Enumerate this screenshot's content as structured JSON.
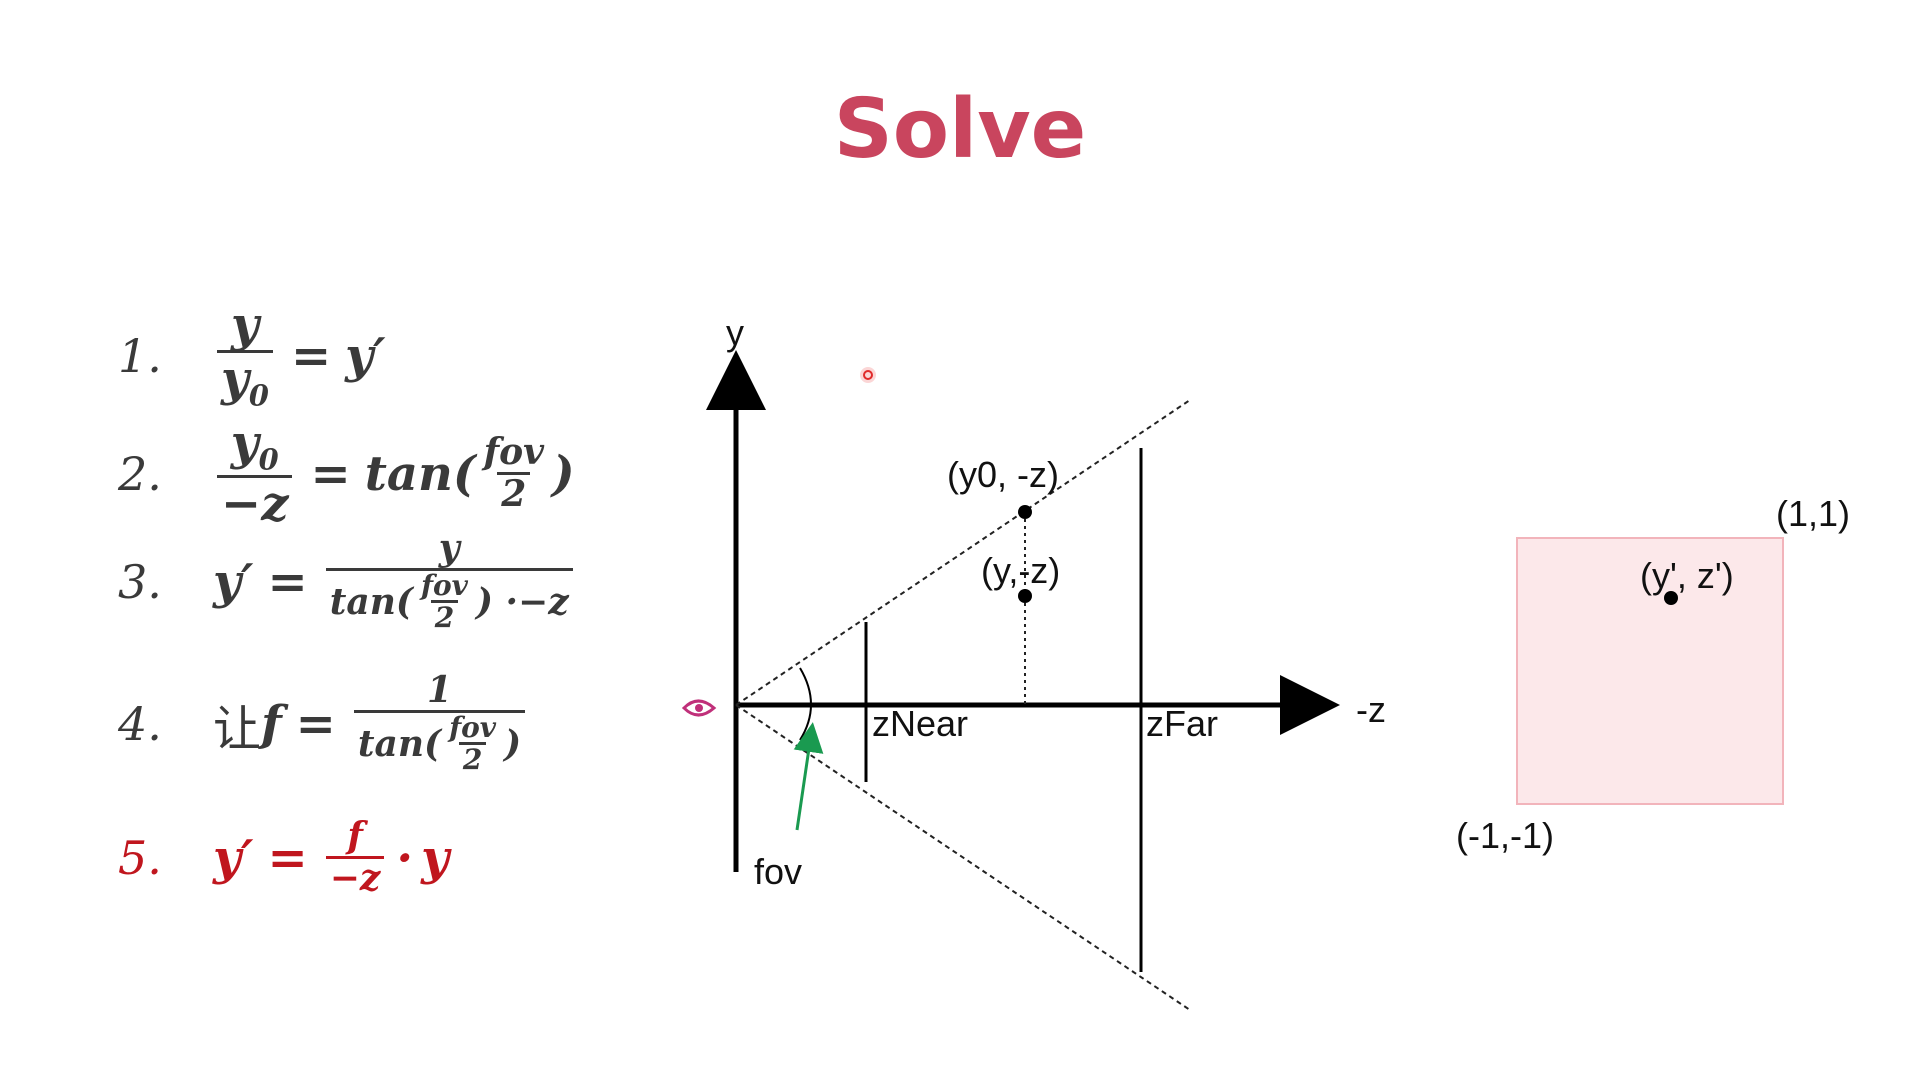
{
  "title": "Solve",
  "equations": [
    {
      "num": "1.",
      "text": "y/y0 = y'"
    },
    {
      "num": "2.",
      "text": "y0/−z = tan(fov/2)"
    },
    {
      "num": "3.",
      "text": "y' = y / (tan(fov/2) · −z)"
    },
    {
      "num": "4.",
      "text": "让 f = 1 / tan(fov/2)"
    },
    {
      "num": "5.",
      "text": "y' = f/−z · y"
    }
  ],
  "eq_colors": {
    "normal": "#3a3a3a",
    "highlight": "#c0161e"
  },
  "diagram": {
    "y_axis_label": "y",
    "z_axis_label": "-z",
    "znear_label": "zNear",
    "zfar_label": "zFar",
    "fov_label": "fov",
    "point_y0": "(y0, -z)",
    "point_y": "(y,-z)",
    "eye_icon": "eye-icon",
    "fov_arrow_color": "#1a9a50",
    "eye_color": "#c0307a"
  },
  "ndc": {
    "top_right": "(1,1)",
    "bottom_left": "(-1,-1)",
    "point": "(y', z')",
    "fill_color": "#fce8ea",
    "border_color": "#f2b4bb"
  },
  "cursor_color": "#e02a2a"
}
